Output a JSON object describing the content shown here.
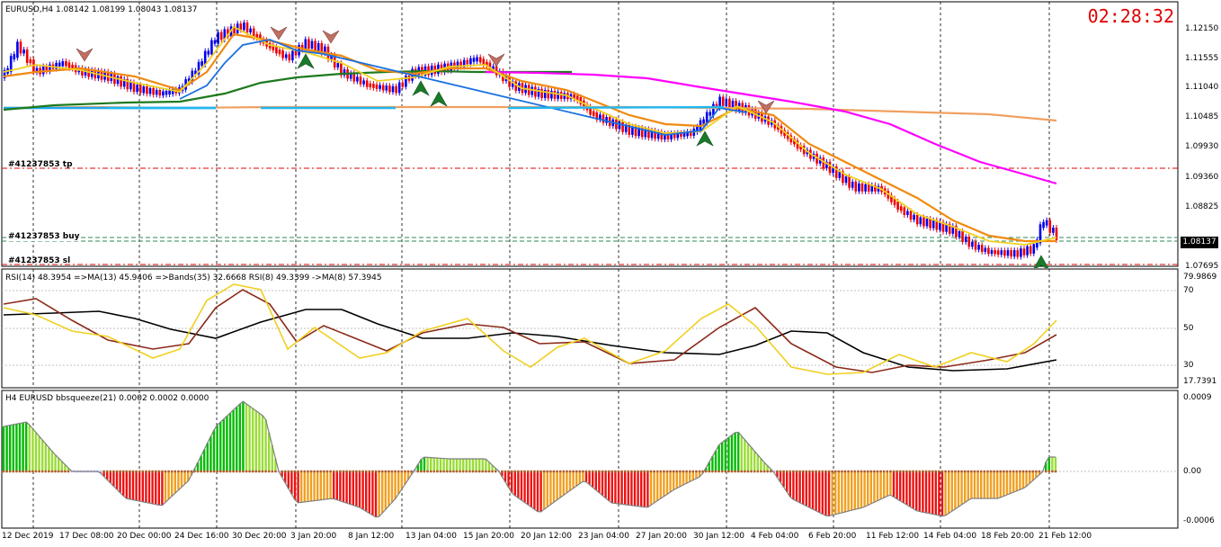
{
  "main_chart": {
    "title": "EURUSD,H4 1.08142 1.08199 1.08043 1.08137",
    "price_labels": [
      "1.12150",
      "1.11555",
      "1.11040",
      "1.10485",
      "1.09930",
      "1.09360",
      "1.08825",
      "1.08137",
      "1.07695"
    ],
    "current_price": "1.08137",
    "clock": "02:28:32",
    "order_labels": {
      "tp": "#41237853 tp",
      "buy": "#41237853 buy",
      "sl": "#41237853 sl"
    },
    "colors": {
      "bull": "#0000ee",
      "bear": "#ee0000",
      "ma_long": "#ff00ff",
      "ma_mid": "#1e7a1e",
      "ma_slow": "#f0a060"
    }
  },
  "rsi_panel": {
    "title": "RSI(14) 48.3954 =>MA(13) 45.9406 =>Bands(35) 32.6668 RSI(8) 49.3399 ->MA(8) 57.3945",
    "levels": [
      "79.9869",
      "70",
      "50",
      "30",
      "17.7391"
    ]
  },
  "squeeze_panel": {
    "title": "H4 EURUSD bbsqueeze(21) 0.0002 0.0002 0.0000",
    "levels": [
      "0.0009",
      "0.00",
      "-0.0006"
    ]
  },
  "time_axis": [
    "12 Dec 2019",
    "17 Dec 08:00",
    "20 Dec 00:00",
    "24 Dec 16:00",
    "30 Dec 20:00",
    "3 Jan 20:00",
    "8 Jan 12:00",
    "13 Jan 04:00",
    "15 Jan 20:00",
    "20 Jan 12:00",
    "23 Jan 04:00",
    "27 Jan 20:00",
    "30 Jan 12:00",
    "4 Feb 04:00",
    "6 Feb 20:00",
    "11 Feb 12:00",
    "14 Feb 04:00",
    "18 Feb 20:00",
    "21 Feb 12:00"
  ]
}
